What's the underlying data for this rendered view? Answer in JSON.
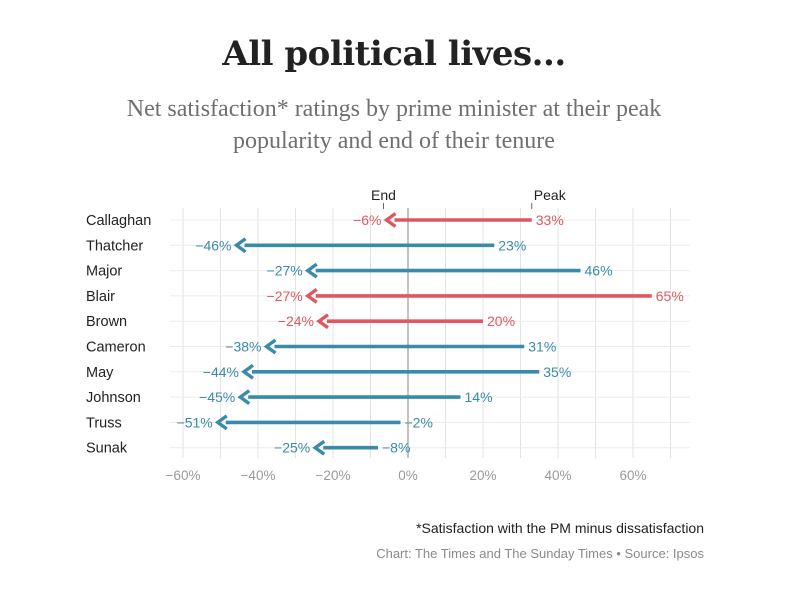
{
  "chart_data": {
    "type": "arrow-dumbbell",
    "title": "All political lives...",
    "subtitle_lines": [
      "Net satisfaction* ratings by prime minister at their peak",
      "popularity and end of their tenure"
    ],
    "key_labels": {
      "end": "End",
      "peak": "Peak"
    },
    "xlim": [
      -65,
      75
    ],
    "x_ticks": [
      -60,
      -40,
      -20,
      0,
      20,
      40,
      60
    ],
    "x_tick_labels": [
      "−60%",
      "−40%",
      "−20%",
      "0%",
      "20%",
      "40%",
      "60%"
    ],
    "grid": true,
    "rows": [
      {
        "name": "Callaghan",
        "peak": 33,
        "end": -6,
        "peak_label": "33%",
        "end_label": "−6%",
        "color": "#e0585f"
      },
      {
        "name": "Thatcher",
        "peak": 23,
        "end": -46,
        "peak_label": "23%",
        "end_label": "−46%",
        "color": "#3a8aaa"
      },
      {
        "name": "Major",
        "peak": 46,
        "end": -27,
        "peak_label": "46%",
        "end_label": "−27%",
        "color": "#3a8aaa"
      },
      {
        "name": "Blair",
        "peak": 65,
        "end": -27,
        "peak_label": "65%",
        "end_label": "−27%",
        "color": "#e0585f"
      },
      {
        "name": "Brown",
        "peak": 20,
        "end": -24,
        "peak_label": "20%",
        "end_label": "−24%",
        "color": "#e0585f"
      },
      {
        "name": "Cameron",
        "peak": 31,
        "end": -38,
        "peak_label": "31%",
        "end_label": "−38%",
        "color": "#3a8aaa"
      },
      {
        "name": "May",
        "peak": 35,
        "end": -44,
        "peak_label": "35%",
        "end_label": "−44%",
        "color": "#3a8aaa"
      },
      {
        "name": "Johnson",
        "peak": 14,
        "end": -45,
        "peak_label": "14%",
        "end_label": "−45%",
        "color": "#3a8aaa"
      },
      {
        "name": "Truss",
        "peak": -2,
        "end": -51,
        "peak_label": "−2%",
        "end_label": "−51%",
        "color": "#3a8aaa"
      },
      {
        "name": "Sunak",
        "peak": -8,
        "end": -25,
        "peak_label": "−8%",
        "end_label": "−25%",
        "color": "#3a8aaa"
      }
    ],
    "colors": {
      "labour": "#e0585f",
      "conservative": "#3a8aaa"
    }
  },
  "footnote": "*Satisfaction with the PM minus dissatisfaction",
  "credit": "Chart: The Times and The Sunday Times • Source: Ipsos"
}
